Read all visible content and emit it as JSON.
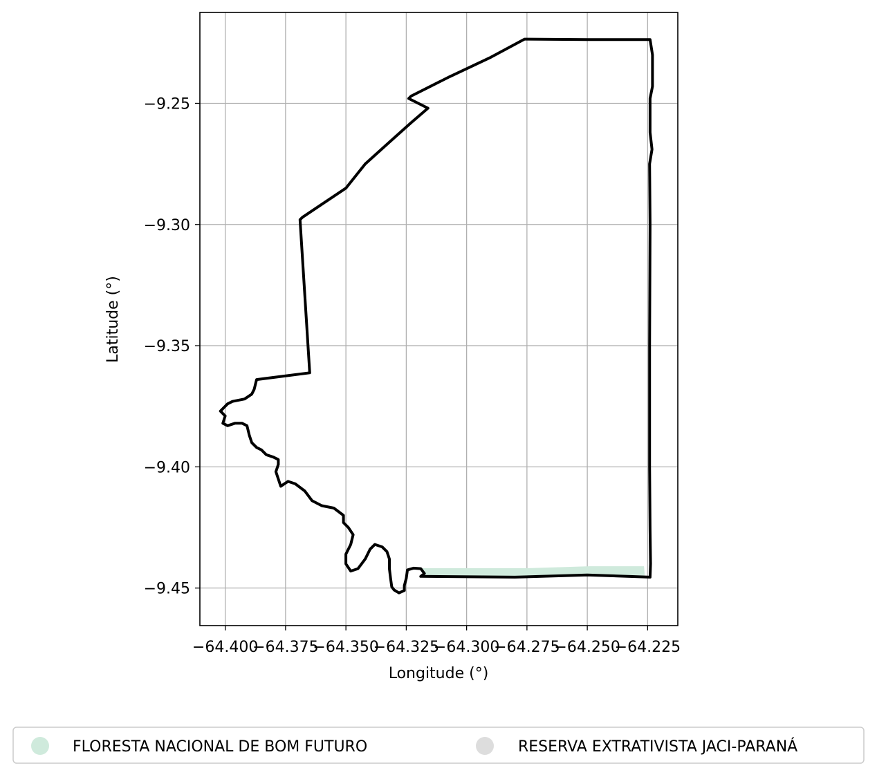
{
  "chart_data": {
    "type": "map",
    "xlabel": "Longitude (°)",
    "ylabel": "Latitude (°)",
    "xlim": [
      -64.4105,
      -64.2125
    ],
    "ylim": [
      -9.4655,
      -9.2125
    ],
    "x_ticks": [
      -64.4,
      -64.375,
      -64.35,
      -64.325,
      -64.3,
      -64.275,
      -64.25,
      -64.225
    ],
    "x_tick_labels": [
      "−64.400",
      "−64.375",
      "−64.350",
      "−64.325",
      "−64.300",
      "−64.275",
      "−64.250",
      "−64.225"
    ],
    "y_ticks": [
      -9.25,
      -9.3,
      -9.35,
      -9.4,
      -9.45
    ],
    "y_tick_labels": [
      "−9.25",
      "−9.30",
      "−9.35",
      "−9.40",
      "−9.45"
    ],
    "grid": true,
    "legend_position": "bottom",
    "series": [
      {
        "name": "FLORESTA NACIONAL DE BOM FUTURO",
        "color": "#cfeadc",
        "edge": "none",
        "polygon": [
          [
            -64.319,
            -9.4418
          ],
          [
            -64.274,
            -9.4418
          ],
          [
            -64.249,
            -9.441
          ],
          [
            -64.2265,
            -9.441
          ],
          [
            -64.2262,
            -9.4448
          ],
          [
            -64.249,
            -9.4446
          ],
          [
            -64.279,
            -9.4455
          ],
          [
            -64.319,
            -9.4452
          ],
          [
            -64.3175,
            -9.444
          ]
        ]
      },
      {
        "name": "RESERVA EXTRATIVISTA JACI-PARANÁ",
        "color": "#dddddd",
        "edge": "#000000",
        "polygon": [
          [
            -64.276,
            -9.2235
          ],
          [
            -64.25,
            -9.2237
          ],
          [
            -64.224,
            -9.2237
          ],
          [
            -64.223,
            -9.23
          ],
          [
            -64.223,
            -9.243
          ],
          [
            -64.224,
            -9.248
          ],
          [
            -64.224,
            -9.262
          ],
          [
            -64.2232,
            -9.269
          ],
          [
            -64.2242,
            -9.275
          ],
          [
            -64.224,
            -9.3
          ],
          [
            -64.2242,
            -9.35
          ],
          [
            -64.2242,
            -9.4
          ],
          [
            -64.224,
            -9.426
          ],
          [
            -64.2238,
            -9.44
          ],
          [
            -64.224,
            -9.4455
          ],
          [
            -64.25,
            -9.4446
          ],
          [
            -64.28,
            -9.4455
          ],
          [
            -64.319,
            -9.4452
          ],
          [
            -64.3175,
            -9.444
          ],
          [
            -64.319,
            -9.442
          ],
          [
            -64.322,
            -9.4418
          ],
          [
            -64.3245,
            -9.4425
          ],
          [
            -64.325,
            -9.446
          ],
          [
            -64.3258,
            -9.449
          ],
          [
            -64.3258,
            -9.451
          ],
          [
            -64.328,
            -9.452
          ],
          [
            -64.33,
            -9.4508
          ],
          [
            -64.331,
            -9.4495
          ],
          [
            -64.3315,
            -9.446
          ],
          [
            -64.332,
            -9.442
          ],
          [
            -64.332,
            -9.438
          ],
          [
            -64.333,
            -9.435
          ],
          [
            -64.335,
            -9.433
          ],
          [
            -64.338,
            -9.432
          ],
          [
            -64.34,
            -9.434
          ],
          [
            -64.342,
            -9.438
          ],
          [
            -64.345,
            -9.442
          ],
          [
            -64.348,
            -9.443
          ],
          [
            -64.35,
            -9.44
          ],
          [
            -64.35,
            -9.436
          ],
          [
            -64.348,
            -9.432
          ],
          [
            -64.347,
            -9.428
          ],
          [
            -64.349,
            -9.425
          ],
          [
            -64.351,
            -9.423
          ],
          [
            -64.351,
            -9.42
          ],
          [
            -64.355,
            -9.417
          ],
          [
            -64.36,
            -9.416
          ],
          [
            -64.364,
            -9.414
          ],
          [
            -64.367,
            -9.41
          ],
          [
            -64.371,
            -9.407
          ],
          [
            -64.374,
            -9.406
          ],
          [
            -64.377,
            -9.408
          ],
          [
            -64.378,
            -9.405
          ],
          [
            -64.379,
            -9.402
          ],
          [
            -64.378,
            -9.399
          ],
          [
            -64.378,
            -9.397
          ],
          [
            -64.38,
            -9.396
          ],
          [
            -64.383,
            -9.395
          ],
          [
            -64.385,
            -9.393
          ],
          [
            -64.387,
            -9.392
          ],
          [
            -64.389,
            -9.39
          ],
          [
            -64.39,
            -9.387
          ],
          [
            -64.391,
            -9.383
          ],
          [
            -64.393,
            -9.382
          ],
          [
            -64.396,
            -9.382
          ],
          [
            -64.399,
            -9.383
          ],
          [
            -64.401,
            -9.382
          ],
          [
            -64.4,
            -9.379
          ],
          [
            -64.402,
            -9.377
          ],
          [
            -64.399,
            -9.374
          ],
          [
            -64.397,
            -9.373
          ],
          [
            -64.392,
            -9.372
          ],
          [
            -64.389,
            -9.37
          ],
          [
            -64.388,
            -9.368
          ],
          [
            -64.387,
            -9.364
          ],
          [
            -64.365,
            -9.3612
          ],
          [
            -64.369,
            -9.298
          ],
          [
            -64.368,
            -9.297
          ],
          [
            -64.35,
            -9.285
          ],
          [
            -64.342,
            -9.275
          ],
          [
            -64.332,
            -9.266
          ],
          [
            -64.323,
            -9.258
          ],
          [
            -64.316,
            -9.252
          ],
          [
            -64.324,
            -9.248
          ],
          [
            -64.323,
            -9.247
          ],
          [
            -64.307,
            -9.239
          ],
          [
            -64.29,
            -9.231
          ]
        ]
      }
    ]
  }
}
